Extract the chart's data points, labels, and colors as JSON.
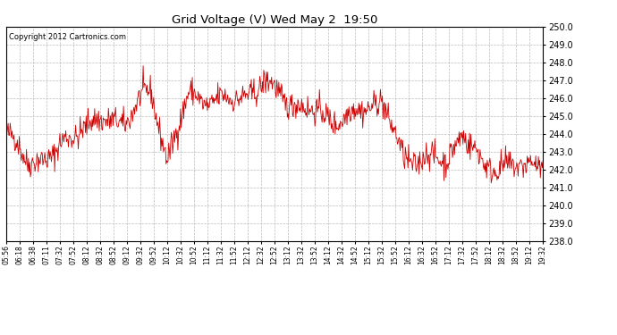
{
  "title": "Grid Voltage (V) Wed May 2  19:50",
  "copyright": "Copyright 2012 Cartronics.com",
  "line_color": "#cc0000",
  "bg_color": "#ffffff",
  "grid_color": "#bbbbbb",
  "ylim": [
    238.0,
    250.0
  ],
  "yticks": [
    238.0,
    239.0,
    240.0,
    241.0,
    242.0,
    243.0,
    244.0,
    245.0,
    246.0,
    247.0,
    248.0,
    249.0,
    250.0
  ],
  "xtick_labels": [
    "05:56",
    "06:18",
    "06:38",
    "07:11",
    "07:32",
    "07:52",
    "08:12",
    "08:32",
    "08:52",
    "09:12",
    "09:32",
    "09:52",
    "10:12",
    "10:32",
    "10:52",
    "11:12",
    "11:32",
    "11:52",
    "12:12",
    "12:32",
    "12:52",
    "13:12",
    "13:32",
    "13:52",
    "14:12",
    "14:32",
    "14:52",
    "15:12",
    "15:32",
    "15:52",
    "16:12",
    "16:32",
    "16:52",
    "17:12",
    "17:32",
    "17:52",
    "18:12",
    "18:32",
    "18:52",
    "19:12",
    "19:32"
  ],
  "seed": 42,
  "n_points": 820,
  "figsize": [
    6.9,
    3.75
  ],
  "dpi": 100
}
